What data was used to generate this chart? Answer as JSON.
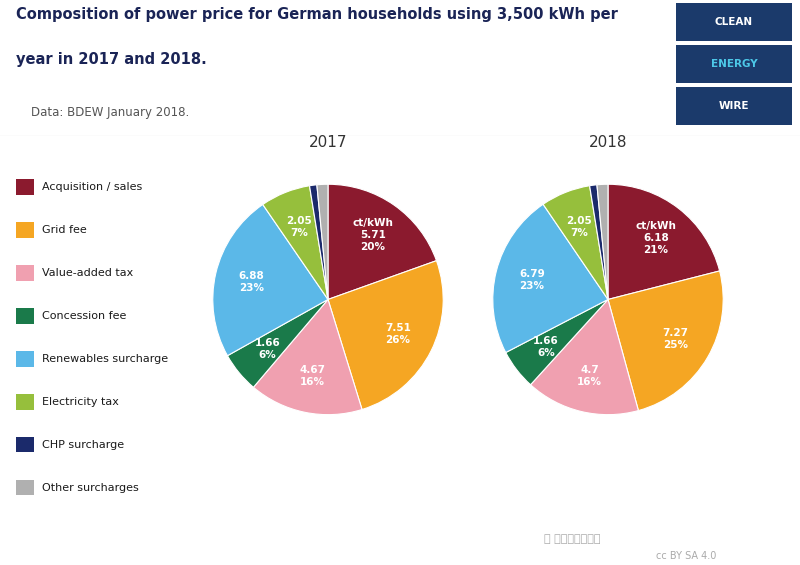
{
  "title_line1": "Composition of power price for German households using 3,500 kWh per",
  "title_line2": "year in 2017 and 2018.",
  "subtitle": "    Data: BDEW January 2018.",
  "year2017_label": "2017",
  "year2018_label": "2018",
  "categories": [
    "Acquisition / sales",
    "Grid fee",
    "Value-added tax",
    "Concession fee",
    "Renewables surcharge",
    "Electricity tax",
    "CHP surcharge",
    "Other surcharges"
  ],
  "colors": [
    "#8B1A2E",
    "#F5A623",
    "#F0A0B0",
    "#1A7A4A",
    "#5BB8E8",
    "#96BF3C",
    "#1B2A6B",
    "#B0B0B0"
  ],
  "values_2017": [
    5.71,
    7.51,
    4.67,
    1.66,
    6.88,
    2.05,
    0.3,
    0.45
  ],
  "values_2018": [
    6.18,
    7.27,
    4.7,
    1.66,
    6.79,
    2.05,
    0.3,
    0.45
  ],
  "pct_2017": [
    20,
    26,
    16,
    6,
    23,
    7,
    1,
    2
  ],
  "pct_2018": [
    21,
    25,
    16,
    6,
    23,
    7,
    1,
    2
  ],
  "logo_bg": "#1B3A6B",
  "logo_text_white": "#FFFFFF",
  "logo_text_cyan": "#4DC8E8",
  "background_color": "#FFFFFF",
  "title_color": "#1A2456",
  "subtitle_color": "#555555",
  "sep_color": "#BBBBBB",
  "watermark_text": "国际能源小数据",
  "cc_text": "cc BY SA 4.0"
}
